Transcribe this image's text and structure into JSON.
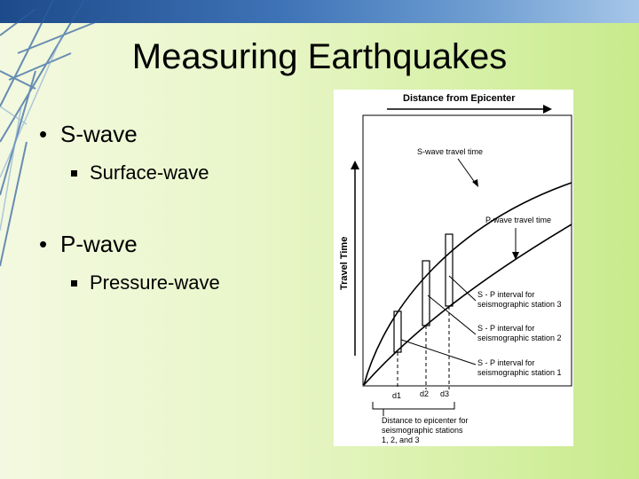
{
  "slide": {
    "title": "Measuring Earthquakes",
    "bullets": [
      {
        "text": "S-wave",
        "sub": "Surface-wave"
      },
      {
        "text": "P-wave",
        "sub": "Pressure-wave"
      }
    ]
  },
  "figure": {
    "top_label": "Distance from Epicenter",
    "y_label": "Travel Time",
    "s_curve_label": "S-wave travel time",
    "p_curve_label": "P-wave travel time",
    "interval_labels": [
      {
        "line1": "S - P interval for",
        "line2": "seismographic station 3"
      },
      {
        "line1": "S - P interval for",
        "line2": "seismographic station 2"
      },
      {
        "line1": "S - P interval for",
        "line2": "seismographic station 1"
      }
    ],
    "d_labels": [
      "d1",
      "d2",
      "d3"
    ],
    "bottom_note": [
      "Distance to epicenter for",
      "seismographic stations",
      "1, 2, and 3"
    ]
  },
  "colors": {
    "background_left": "#f3f9e0",
    "background_right": "#c9ea8c",
    "topbar": "#3f74b8",
    "figure_bg": "#ffffff"
  }
}
